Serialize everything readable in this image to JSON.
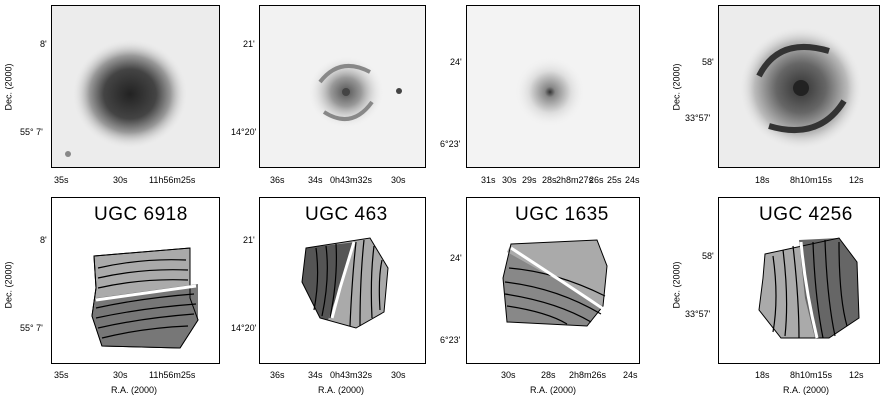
{
  "figure": {
    "galaxies": [
      {
        "name": "UGC 6918",
        "image": {
          "x_ticks": [
            "35s",
            "30s",
            "11h56m25s"
          ],
          "y_ticks": [
            "8'",
            "55° 7'"
          ],
          "ylabel": "Dec. (2000)"
        },
        "velfield": {
          "x_ticks": [
            "35s",
            "30s",
            "11h56m25s"
          ],
          "y_ticks": [
            "8'",
            "55° 7'"
          ],
          "ylabel": "Dec. (2000)",
          "xlabel": "R.A. (2000)"
        }
      },
      {
        "name": "UGC 463",
        "image": {
          "x_ticks": [
            "36s",
            "34s",
            "0h43m32s",
            "30s"
          ],
          "y_ticks": [
            "21'",
            "14°20'"
          ]
        },
        "velfield": {
          "x_ticks": [
            "36s",
            "34s",
            "0h43m32s",
            "30s"
          ],
          "y_ticks": [
            "21'",
            "14°20'"
          ],
          "xlabel": "R.A. (2000)"
        }
      },
      {
        "name": "UGC 1635",
        "image": {
          "x_ticks": [
            "31s",
            "30s",
            "29s",
            "28s",
            "2h8m27s",
            "26s",
            "25s",
            "24s"
          ],
          "y_ticks": [
            "24'",
            "6°23'"
          ]
        },
        "velfield": {
          "x_ticks": [
            "30s",
            "28s",
            "2h8m26s",
            "24s"
          ],
          "y_ticks": [
            "24'",
            "6°23'"
          ],
          "xlabel": "R.A. (2000)"
        }
      },
      {
        "name": "UGC 4256",
        "image": {
          "x_ticks": [
            "18s",
            "8h10m15s",
            "12s"
          ],
          "y_ticks": [
            "58'",
            "33°57'"
          ],
          "ylabel": "Dec. (2000)"
        },
        "velfield": {
          "x_ticks": [
            "18s",
            "8h10m15s",
            "12s"
          ],
          "y_ticks": [
            "58'",
            "33°57'"
          ],
          "ylabel": "Dec. (2000)",
          "xlabel": "R.A. (2000)"
        }
      }
    ]
  }
}
